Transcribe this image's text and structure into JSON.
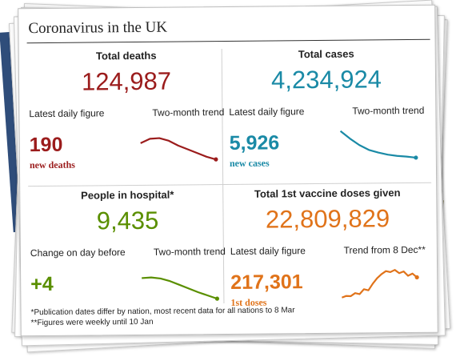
{
  "title": "Coronavirus in the UK",
  "colors": {
    "deaths": "#9b1c1c",
    "cases": "#1a8aa6",
    "hospital": "#5a8f00",
    "vaccine": "#e0731a"
  },
  "panels": [
    {
      "heading": "Total deaths",
      "total": "124,987",
      "left_label": "Latest daily figure",
      "right_label": "Two-month trend",
      "daily": "190",
      "daily_sub": "new deaths",
      "trend": [
        0.62,
        0.78,
        0.8,
        0.7,
        0.52,
        0.38,
        0.24,
        0.1,
        0.0
      ]
    },
    {
      "heading": "Total cases",
      "total": "4,234,924",
      "left_label": "Latest daily figure",
      "right_label": "Two-month trend",
      "daily": "5,926",
      "daily_sub": "new cases",
      "trend": [
        1.0,
        0.72,
        0.48,
        0.3,
        0.2,
        0.12,
        0.07,
        0.04,
        0.0
      ]
    },
    {
      "heading": "People in hospital*",
      "total": "9,435",
      "left_label": "Change on day before",
      "right_label": "Two-month trend",
      "daily": "+4",
      "daily_sub": "",
      "trend": [
        0.78,
        0.8,
        0.76,
        0.66,
        0.52,
        0.38,
        0.24,
        0.12,
        0.0
      ]
    },
    {
      "heading": "Total 1st vaccine doses given",
      "total": "22,809,829",
      "left_label": "Latest daily figure",
      "right_label": "Trend from 8 Dec**",
      "daily": "217,301",
      "daily_sub": "1st doses",
      "trend": [
        0.0,
        0.06,
        0.05,
        0.16,
        0.12,
        0.3,
        0.26,
        0.5,
        0.7,
        0.85,
        0.96,
        0.92,
        1.0,
        0.88,
        0.94,
        0.78,
        0.86,
        0.72
      ]
    }
  ],
  "footnotes": [
    "*Publication dates differ by nation, most recent data for all nations to 8 Mar",
    "**Figures were weekly until 10 Jan"
  ]
}
